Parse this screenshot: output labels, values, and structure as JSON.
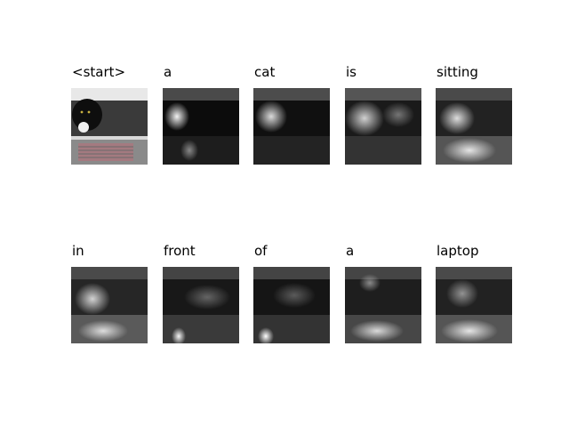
{
  "panels": [
    {
      "word": "<start>",
      "kind": "photo"
    },
    {
      "word": "a",
      "kind": "attention",
      "focus": "cat-face"
    },
    {
      "word": "cat",
      "kind": "attention",
      "focus": "cat-face"
    },
    {
      "word": "is",
      "kind": "attention",
      "focus": "cat-body"
    },
    {
      "word": "sitting",
      "kind": "attention",
      "focus": "cat-and-laptop"
    },
    {
      "word": "in",
      "kind": "attention",
      "focus": "cat-and-laptop"
    },
    {
      "word": "front",
      "kind": "attention",
      "focus": "laptop-left"
    },
    {
      "word": "of",
      "kind": "attention",
      "focus": "laptop-left"
    },
    {
      "word": "a",
      "kind": "attention",
      "focus": "laptop"
    },
    {
      "word": "laptop",
      "kind": "attention",
      "focus": "laptop"
    }
  ]
}
